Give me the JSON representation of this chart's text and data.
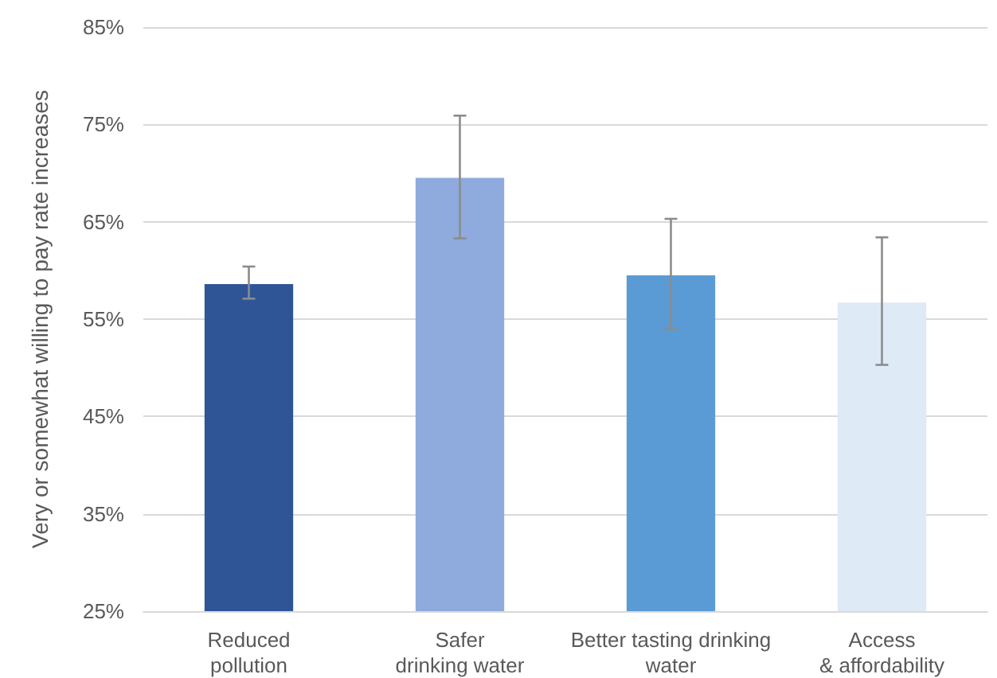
{
  "chart_data": {
    "type": "bar",
    "ylabel": "Very or somewhat willing to pay rate increases",
    "categories": [
      "Reduced\npollution",
      "Safer\ndrinking water",
      "Better tasting drinking\nwater",
      "Access\n& affordability"
    ],
    "values": [
      58.6,
      69.5,
      59.5,
      56.7
    ],
    "colors": [
      "#2f5597",
      "#8faadc",
      "#5b9bd5",
      "#deeaf6"
    ],
    "errors": [
      [
        57.1,
        60.4
      ],
      [
        63.3,
        75.9
      ],
      [
        54.0,
        65.3
      ],
      [
        50.3,
        63.4
      ]
    ],
    "ylim": [
      25,
      85
    ],
    "yticks": [
      {
        "value": 25,
        "label": "25%"
      },
      {
        "value": 35,
        "label": "35%"
      },
      {
        "value": 45,
        "label": "45%"
      },
      {
        "value": 55,
        "label": "55%"
      },
      {
        "value": 65,
        "label": "65%"
      },
      {
        "value": 75,
        "label": "75%"
      },
      {
        "value": 85,
        "label": "85%"
      }
    ],
    "grid": "y"
  }
}
